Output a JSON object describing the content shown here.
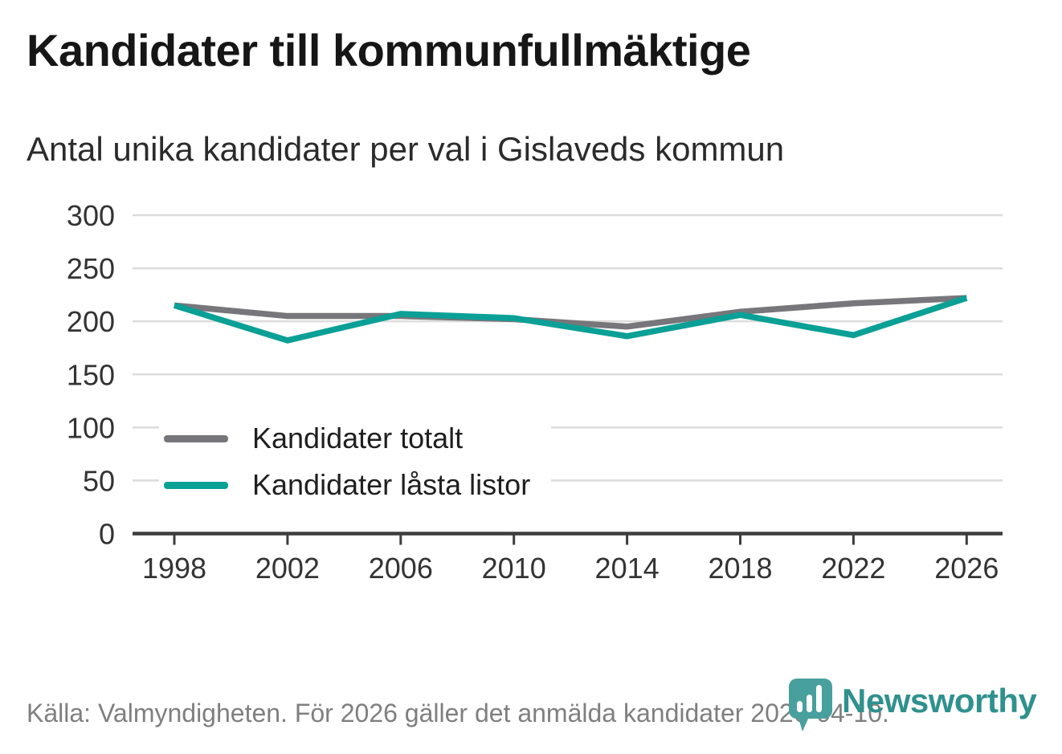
{
  "header": {
    "title": "Kandidater till kommunfullmäktige",
    "subtitle": "Antal unika kandidater per val i Gislaveds kommun"
  },
  "footer": {
    "source_note": "Källa: Valmyndigheten. För 2026 gäller det anmälda kandidater 2026-04-10.",
    "brand": "Newsworthy"
  },
  "colors": {
    "series_total": "#77767a",
    "series_locked": "#0aa096",
    "grid": "#dcdcdc",
    "axis": "#3d3d3d",
    "tick_label": "#333333",
    "logo_teal": "#47a09d",
    "brand_text": "#2f918e"
  },
  "chart_data": {
    "type": "line",
    "title": "Kandidater till kommunfullmäktige",
    "subtitle": "Antal unika kandidater per val i Gislaveds kommun",
    "categories": [
      "1998",
      "2002",
      "2006",
      "2010",
      "2014",
      "2018",
      "2022",
      "2026"
    ],
    "series": [
      {
        "name": "Kandidater totalt",
        "color": "#77767a",
        "values": [
          215,
          205,
          205,
          202,
          195,
          209,
          217,
          222
        ]
      },
      {
        "name": "Kandidater låsta listor",
        "color": "#0aa096",
        "values": [
          215,
          182,
          207,
          203,
          186,
          206,
          187,
          222
        ]
      }
    ],
    "xlabel": "",
    "ylabel": "",
    "ylim": [
      0,
      300
    ],
    "yticks": [
      0,
      50,
      100,
      150,
      200,
      250,
      300
    ],
    "grid": "horizontal",
    "legend_position": "inside-left"
  }
}
